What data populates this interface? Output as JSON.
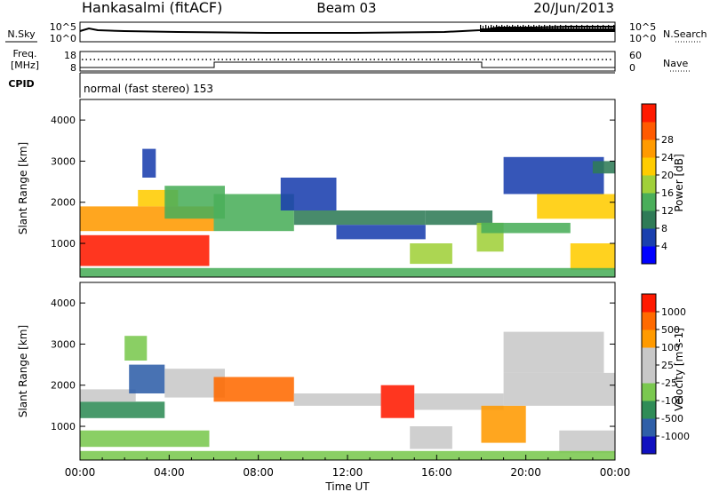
{
  "header": {
    "site": "Hankasalmi (fitACF)",
    "beam": "Beam 03",
    "date": "20/Jun/2013"
  },
  "strips": {
    "nsky_label": "N.Sky",
    "nsky_ticks": [
      "10^5",
      "10^0"
    ],
    "nsearch_label": "N.Search",
    "nsearch_ticks": [
      "10^5",
      "10^0"
    ],
    "freq_label_1": "Freq.",
    "freq_label_2": "[MHz]",
    "freq_ticks": [
      "18",
      "8"
    ],
    "nave_label": "Nave",
    "nave_ticks": [
      "60",
      "0"
    ],
    "cpid_label": "CPID",
    "cpid_text": "normal (fast stereo) 153"
  },
  "colors": {
    "power_scale": [
      "#0000ff",
      "#1a3fae",
      "#2f7b57",
      "#4aae5a",
      "#a0d03a",
      "#ffcc00",
      "#ff9a00",
      "#ff5a00",
      "#ff1a00"
    ],
    "velocity_scale": [
      "#1010c0",
      "#2f5fa8",
      "#2f8c57",
      "#7ac84f",
      "#c8c8c8",
      "#c8c8c8",
      "#ff9a00",
      "#ff6a00",
      "#ff1a00"
    ]
  },
  "chart_data": [
    {
      "type": "heatmap",
      "name": "power",
      "ylabel": "Slant Range [km]",
      "yticks": [
        1000,
        2000,
        3000,
        4000
      ],
      "ylim": [
        180,
        4500
      ],
      "xlim": [
        0,
        24
      ],
      "colorbar_label": "Power [dB]",
      "colorbar_ticks": [
        "4",
        "8",
        "12",
        "16",
        "20",
        "24",
        "28"
      ],
      "bands": [
        {
          "t0": 0.0,
          "t1": 5.8,
          "r0": 450,
          "r1": 1200,
          "level": 8
        },
        {
          "t0": 0.0,
          "t1": 6.0,
          "r0": 1300,
          "r1": 1900,
          "level": 6
        },
        {
          "t0": 2.6,
          "t1": 4.4,
          "r0": 1900,
          "r1": 2300,
          "level": 5
        },
        {
          "t0": 2.8,
          "t1": 3.4,
          "r0": 2600,
          "r1": 3300,
          "level": 1
        },
        {
          "t0": 3.8,
          "t1": 6.5,
          "r0": 1600,
          "r1": 2400,
          "level": 3
        },
        {
          "t0": 6.0,
          "t1": 9.6,
          "r0": 1300,
          "r1": 2200,
          "level": 3
        },
        {
          "t0": 9.6,
          "t1": 15.5,
          "r0": 1450,
          "r1": 1800,
          "level": 2
        },
        {
          "t0": 9.0,
          "t1": 11.5,
          "r0": 1800,
          "r1": 2600,
          "level": 1
        },
        {
          "t0": 11.5,
          "t1": 15.5,
          "r0": 1100,
          "r1": 1450,
          "level": 1
        },
        {
          "t0": 14.8,
          "t1": 16.7,
          "r0": 500,
          "r1": 1000,
          "level": 4
        },
        {
          "t0": 15.5,
          "t1": 18.5,
          "r0": 1450,
          "r1": 1800,
          "level": 2
        },
        {
          "t0": 17.8,
          "t1": 19.0,
          "r0": 800,
          "r1": 1500,
          "level": 4
        },
        {
          "t0": 18.0,
          "t1": 22.0,
          "r0": 1250,
          "r1": 1500,
          "level": 3
        },
        {
          "t0": 19.0,
          "t1": 23.5,
          "r0": 2200,
          "r1": 3100,
          "level": 1
        },
        {
          "t0": 20.5,
          "t1": 24.0,
          "r0": 1600,
          "r1": 2200,
          "level": 5
        },
        {
          "t0": 22.0,
          "t1": 24.0,
          "r0": 350,
          "r1": 1000,
          "level": 5
        },
        {
          "t0": 23.0,
          "t1": 24.0,
          "r0": 2700,
          "r1": 3000,
          "level": 2
        },
        {
          "t0": 0.0,
          "t1": 24.0,
          "r0": 180,
          "r1": 400,
          "level": 3
        }
      ]
    },
    {
      "type": "heatmap",
      "name": "velocity",
      "ylabel": "Slant Range [km]",
      "yticks": [
        1000,
        2000,
        3000,
        4000
      ],
      "ylim": [
        180,
        4500
      ],
      "xlim": [
        0,
        24
      ],
      "xlabel": "Time UT",
      "xticks": [
        "00:00",
        "04:00",
        "08:00",
        "12:00",
        "16:00",
        "20:00",
        "00:00"
      ],
      "colorbar_label": "Velocity [m s-1]",
      "colorbar_ticks": [
        "-1000",
        "-500",
        "-100",
        "-25",
        "25",
        "100",
        "500",
        "1000"
      ],
      "bands": [
        {
          "t0": 0.0,
          "t1": 3.8,
          "r0": 1200,
          "r1": 1600,
          "level": 2
        },
        {
          "t0": 0.0,
          "t1": 5.8,
          "r0": 500,
          "r1": 900,
          "level": 3
        },
        {
          "t0": 0.0,
          "t1": 2.5,
          "r0": 1600,
          "r1": 1900,
          "level": 4
        },
        {
          "t0": 2.2,
          "t1": 3.8,
          "r0": 1800,
          "r1": 2500,
          "level": 1
        },
        {
          "t0": 2.0,
          "t1": 3.0,
          "r0": 2600,
          "r1": 3200,
          "level": 3
        },
        {
          "t0": 3.8,
          "t1": 6.5,
          "r0": 1700,
          "r1": 2400,
          "level": 4
        },
        {
          "t0": 6.0,
          "t1": 9.6,
          "r0": 1600,
          "r1": 2200,
          "level": 7
        },
        {
          "t0": 9.6,
          "t1": 13.5,
          "r0": 1500,
          "r1": 1800,
          "level": 4
        },
        {
          "t0": 13.5,
          "t1": 15.0,
          "r0": 1200,
          "r1": 2000,
          "level": 8
        },
        {
          "t0": 14.8,
          "t1": 16.7,
          "r0": 450,
          "r1": 1000,
          "level": 5
        },
        {
          "t0": 15.0,
          "t1": 19.0,
          "r0": 1400,
          "r1": 1800,
          "level": 4
        },
        {
          "t0": 18.0,
          "t1": 20.0,
          "r0": 600,
          "r1": 1500,
          "level": 6
        },
        {
          "t0": 19.0,
          "t1": 24.0,
          "r0": 1500,
          "r1": 2300,
          "level": 4
        },
        {
          "t0": 19.0,
          "t1": 23.5,
          "r0": 2300,
          "r1": 3300,
          "level": 4
        },
        {
          "t0": 21.5,
          "t1": 24.0,
          "r0": 350,
          "r1": 900,
          "level": 4
        },
        {
          "t0": 0.0,
          "t1": 24.0,
          "r0": 180,
          "r1": 400,
          "level": 3
        }
      ]
    }
  ]
}
